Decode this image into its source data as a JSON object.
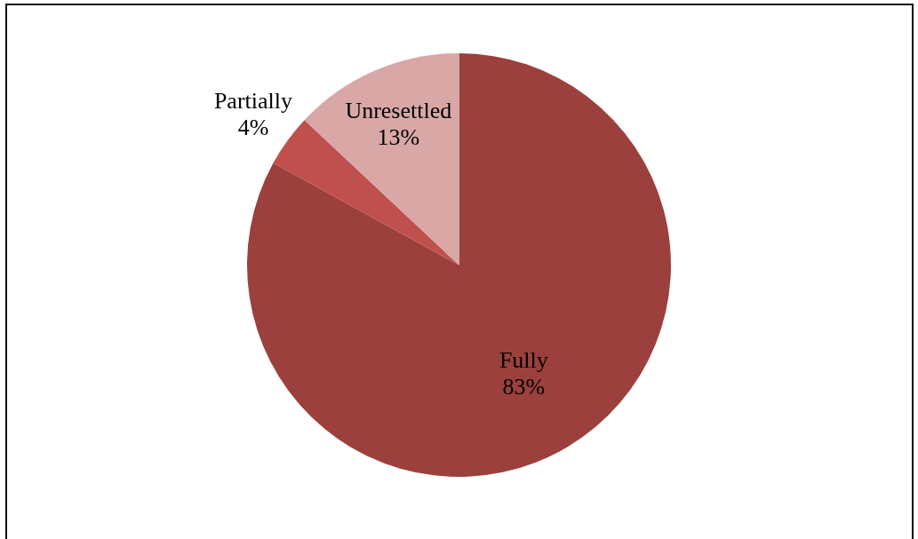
{
  "chart_data": {
    "type": "pie",
    "categories": [
      "Fully",
      "Partially",
      "Unresettled"
    ],
    "values": [
      83,
      4,
      13
    ],
    "colors": [
      "#9b403c",
      "#c0504d",
      "#d9a7a6"
    ],
    "value_labels": [
      "83%",
      "4%",
      "13%"
    ],
    "legend": false
  }
}
